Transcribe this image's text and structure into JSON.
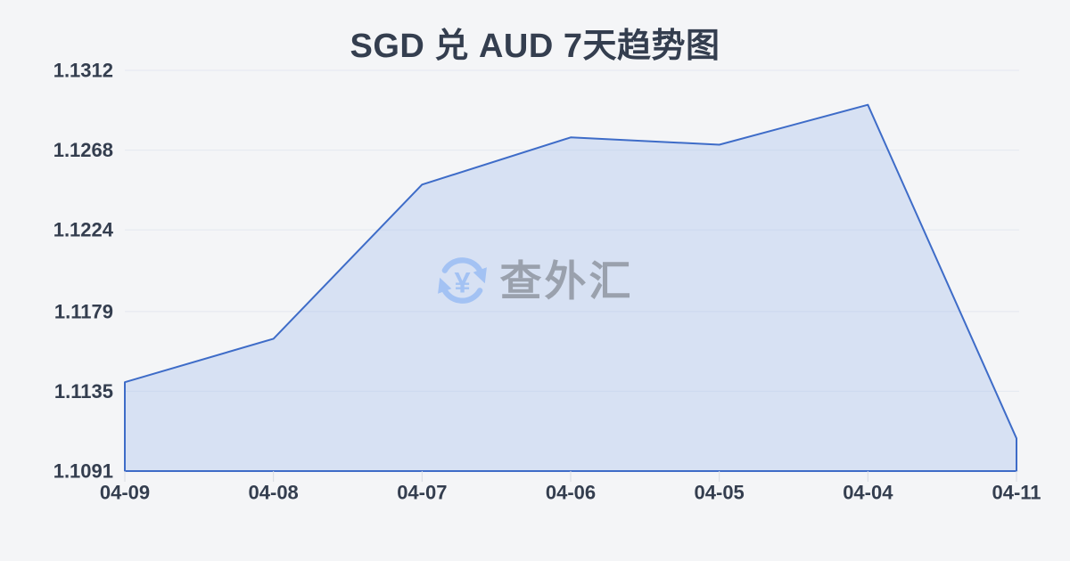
{
  "chart": {
    "title": "SGD 兑 AUD 7天趋势图"
  },
  "watermark": {
    "text": "查外汇",
    "symbol": "¥"
  },
  "chart_data": {
    "type": "area",
    "title": "SGD 兑 AUD 7天趋势图",
    "categories": [
      "04-09",
      "04-08",
      "04-07",
      "04-06",
      "04-05",
      "04-04",
      "04-11"
    ],
    "series": [
      {
        "name": "SGD/AUD",
        "values": [
          1.114,
          1.1164,
          1.1249,
          1.1275,
          1.1271,
          1.1293,
          1.1109
        ]
      }
    ],
    "y_ticks": [
      1.1091,
      1.1135,
      1.1179,
      1.1224,
      1.1268,
      1.1312
    ],
    "y_tick_decimals": 4,
    "ylim": [
      1.1091,
      1.1312
    ],
    "xlabel": "",
    "ylabel": "",
    "grid": true,
    "legend": false,
    "colors": {
      "background": "#f4f5f7",
      "line": "#3e6cc8",
      "fill": "rgba(150,180,235,0.30)",
      "grid": "#e4e8f0",
      "tick": "#d8dce3",
      "label": "#343e4f",
      "watermark_icon": "#a3c2f3",
      "watermark_text": "#9aa1ad"
    }
  }
}
